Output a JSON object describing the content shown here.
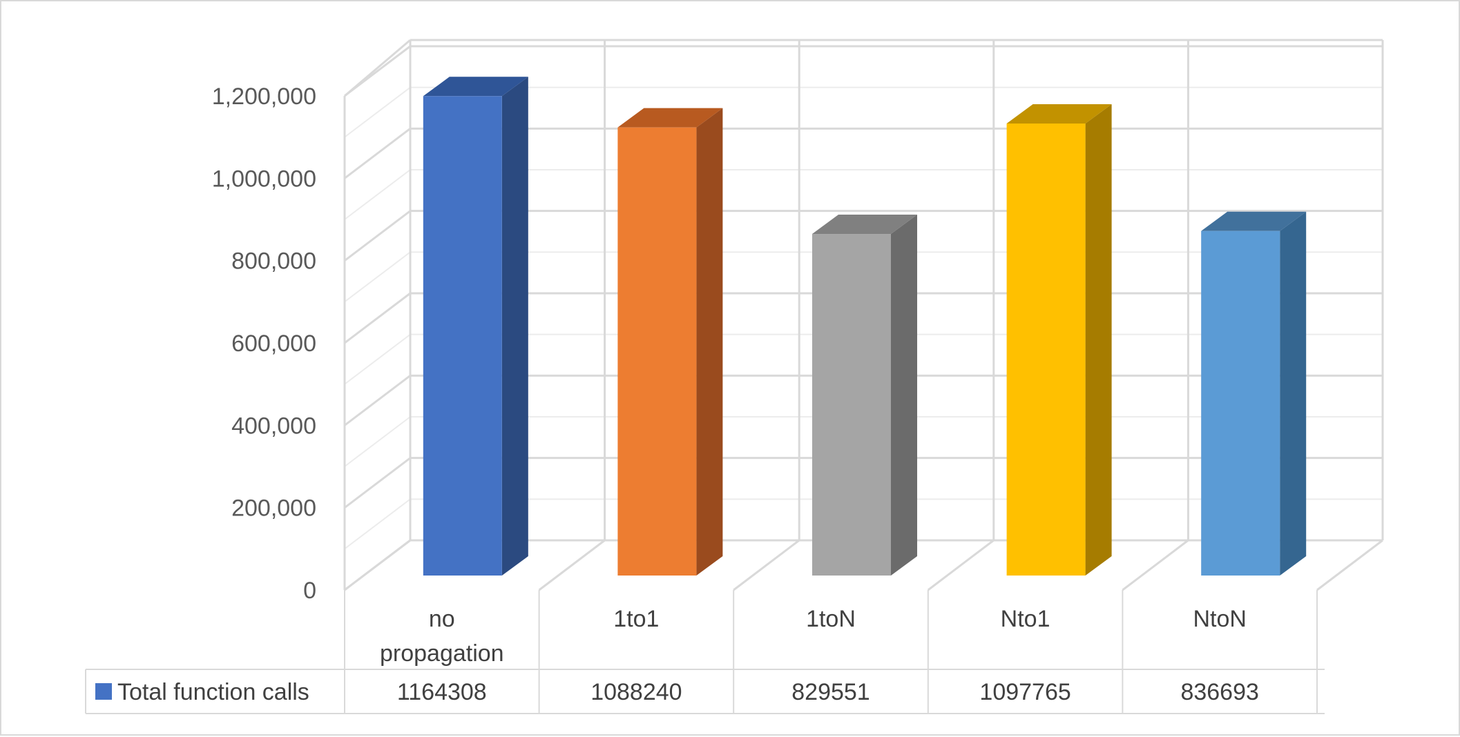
{
  "chart_data": {
    "type": "bar",
    "style": "3d-column with data table",
    "categories": [
      "no propagation",
      "1to1",
      "1toN",
      "Nto1",
      "NtoN"
    ],
    "series": [
      {
        "name": "Total function calls",
        "values": [
          1164308,
          1088240,
          829551,
          1097765,
          836693
        ],
        "legend_color": "#4472C4"
      }
    ],
    "bar_colors": [
      {
        "front": "#4472C4",
        "side": "#2B4A80",
        "top": "#2F5597"
      },
      {
        "front": "#ED7D31",
        "side": "#9A4B1E",
        "top": "#B85A20"
      },
      {
        "front": "#A5A5A5",
        "side": "#6B6B6B",
        "top": "#808080"
      },
      {
        "front": "#FFC000",
        "side": "#A67C00",
        "top": "#C29200"
      },
      {
        "front": "#5B9BD5",
        "side": "#356690",
        "top": "#41719C"
      }
    ],
    "ylim": [
      0,
      1200000
    ],
    "yticks": [
      "0",
      "200,000",
      "400,000",
      "600,000",
      "800,000",
      "1,000,000",
      "1,200,000"
    ],
    "grid": true,
    "legend": "data-table",
    "title": "",
    "xlabel": "",
    "ylabel": ""
  }
}
